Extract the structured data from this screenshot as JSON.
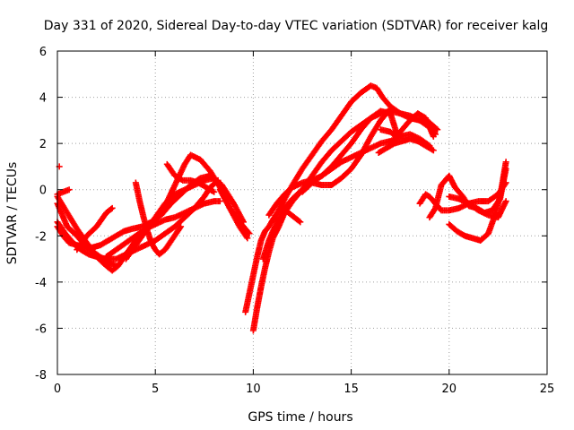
{
  "chart_data": {
    "type": "scatter",
    "title": "Day 331 of 2020, Sidereal Day-to-day VTEC variation (SDTVAR) for receiver kalg",
    "xlabel": "GPS time / hours",
    "ylabel": "SDTVAR / TECUs",
    "xlim": [
      0,
      25
    ],
    "ylim": [
      -8,
      6
    ],
    "xticks": [
      0,
      5,
      10,
      15,
      20,
      25
    ],
    "yticks": [
      -8,
      -6,
      -4,
      -2,
      0,
      2,
      4,
      6
    ],
    "grid": true,
    "marker": "+",
    "color": "#ff0000",
    "tracks": [
      {
        "x": [
          0.0,
          0.5,
          1.0,
          1.5,
          2.0,
          2.5,
          2.8,
          3.1,
          3.5,
          4.0,
          4.5,
          5.0,
          5.5,
          6.0,
          6.5,
          6.8,
          7.3,
          7.8,
          8.3,
          8.8,
          9.3,
          9.7
        ],
        "y": [
          -0.3,
          -1.0,
          -1.7,
          -2.3,
          -2.9,
          -3.3,
          -3.5,
          -3.3,
          -2.8,
          -2.2,
          -1.8,
          -1.3,
          -0.7,
          0.2,
          1.1,
          1.5,
          1.3,
          0.8,
          0.1,
          -0.8,
          -1.6,
          -2.1
        ]
      },
      {
        "x": [
          0.0,
          0.4,
          0.8,
          1.2,
          1.6,
          2.0,
          2.5,
          3.0,
          3.5,
          4.0,
          4.5,
          5.0,
          5.5,
          6.0,
          6.5,
          7.0,
          7.5,
          7.8,
          8.2
        ],
        "y": [
          -1.4,
          -1.9,
          -2.3,
          -2.6,
          -2.8,
          -2.9,
          -3.0,
          -3.0,
          -2.8,
          -2.6,
          -2.4,
          -2.2,
          -1.9,
          -1.6,
          -1.2,
          -0.8,
          -0.3,
          0.1,
          0.4
        ]
      },
      {
        "x": [
          0.0,
          0.3,
          0.6,
          1.0,
          1.4,
          1.8,
          2.2,
          2.6,
          3.0,
          3.4,
          3.8,
          4.3,
          4.8,
          5.3,
          5.8,
          6.3,
          6.8,
          7.3,
          7.8,
          8.4,
          9.0,
          9.5
        ],
        "y": [
          -1.6,
          -2.0,
          -2.3,
          -2.4,
          -2.5,
          -2.5,
          -2.4,
          -2.2,
          -2.0,
          -1.8,
          -1.7,
          -1.6,
          -1.4,
          -1.1,
          -0.6,
          -0.2,
          0.2,
          0.5,
          0.6,
          0.2,
          -0.6,
          -1.4
        ]
      },
      {
        "x": [
          0.0,
          0.3,
          0.6
        ],
        "y": [
          -0.2,
          -0.1,
          0.0
        ]
      },
      {
        "x": [
          1.0,
          1.5,
          2.0,
          2.5,
          2.8
        ],
        "y": [
          -2.6,
          -2.0,
          -1.6,
          -1.0,
          -0.8
        ]
      },
      {
        "x": [
          2.5,
          3.0,
          3.5,
          4.0,
          4.5,
          5.0,
          5.5,
          6.0,
          6.5,
          7.0,
          7.5,
          8.0,
          8.3
        ],
        "y": [
          -2.9,
          -2.6,
          -2.3,
          -2.0,
          -1.7,
          -1.5,
          -1.3,
          -1.2,
          -1.0,
          -0.8,
          -0.6,
          -0.5,
          -0.5
        ]
      },
      {
        "x": [
          3.5,
          4.0,
          4.5,
          5.0,
          5.5,
          6.0,
          6.5,
          7.0,
          7.5,
          8.0
        ],
        "y": [
          -3.0,
          -2.4,
          -1.8,
          -1.2,
          -0.6,
          -0.2,
          0.0,
          0.2,
          0.4,
          0.5
        ]
      },
      {
        "x": [
          4.0,
          4.2,
          4.4,
          4.6,
          4.8,
          5.0,
          5.2,
          5.5,
          5.9,
          6.3
        ],
        "y": [
          0.3,
          -0.5,
          -1.2,
          -1.8,
          -2.3,
          -2.6,
          -2.8,
          -2.6,
          -2.1,
          -1.6
        ]
      },
      {
        "x": [
          5.6,
          6.0,
          6.4,
          6.8,
          7.2,
          7.6,
          8.0
        ],
        "y": [
          1.1,
          0.6,
          0.4,
          0.4,
          0.3,
          0.1,
          -0.1
        ]
      },
      {
        "x": [
          8.3,
          8.8,
          9.3,
          9.8
        ],
        "y": [
          0.0,
          -0.8,
          -1.4,
          -1.9
        ]
      },
      {
        "x": [
          9.6,
          9.8,
          10.0,
          10.2,
          10.4,
          10.6,
          10.8,
          11.0,
          11.3,
          11.6,
          12.0,
          12.5,
          13.0,
          13.5,
          14.0,
          14.5,
          15.0,
          15.5,
          16.0,
          16.3,
          16.6,
          17.0,
          17.5,
          18.0,
          18.5,
          19.0,
          19.4
        ],
        "y": [
          -5.3,
          -4.5,
          -3.7,
          -2.9,
          -2.2,
          -1.8,
          -1.6,
          -1.3,
          -0.9,
          -0.4,
          0.2,
          0.9,
          1.5,
          2.1,
          2.6,
          3.2,
          3.8,
          4.2,
          4.5,
          4.4,
          4.0,
          3.6,
          3.3,
          3.1,
          3.0,
          2.9,
          2.6
        ]
      },
      {
        "x": [
          10.0,
          10.2,
          10.4,
          10.6,
          10.8,
          11.0,
          11.3,
          11.6,
          12.0,
          12.5,
          13.0,
          13.5,
          14.0,
          14.5,
          15.0,
          15.5,
          16.0,
          16.5,
          17.0,
          17.5,
          18.0,
          18.5,
          19.0,
          19.3
        ],
        "y": [
          -6.1,
          -5.1,
          -4.2,
          -3.4,
          -2.7,
          -2.1,
          -1.6,
          -1.0,
          -0.5,
          0.0,
          0.6,
          1.2,
          1.7,
          2.1,
          2.5,
          2.8,
          3.1,
          3.3,
          3.4,
          3.3,
          3.2,
          3.0,
          2.7,
          2.4
        ]
      },
      {
        "x": [
          10.5,
          10.8,
          11.0,
          11.3,
          11.6,
          12.0,
          12.5,
          13.0,
          13.5,
          14.0,
          14.5,
          15.0,
          15.5,
          16.0,
          16.5,
          17.0,
          17.5,
          18.0,
          18.5,
          19.0
        ],
        "y": [
          -3.0,
          -2.2,
          -1.8,
          -1.3,
          -0.8,
          -0.4,
          0.0,
          0.3,
          0.6,
          0.9,
          1.2,
          1.4,
          1.6,
          1.8,
          2.0,
          2.1,
          2.3,
          2.4,
          2.2,
          1.9
        ]
      },
      {
        "x": [
          10.8,
          11.2,
          11.6,
          12.0,
          12.5,
          13.0,
          13.5,
          14.0,
          14.5,
          15.0,
          15.5,
          16.0,
          16.5,
          17.0,
          17.3
        ],
        "y": [
          -1.1,
          -0.6,
          -0.2,
          0.1,
          0.3,
          0.4,
          0.6,
          1.0,
          1.5,
          2.0,
          2.6,
          3.1,
          3.4,
          3.3,
          2.5
        ]
      },
      {
        "x": [
          11.5,
          11.8,
          12.1,
          12.4
        ],
        "y": [
          -0.8,
          -1.0,
          -1.2,
          -1.4
        ]
      },
      {
        "x": [
          12.5,
          13.0,
          13.5,
          14.0,
          14.5,
          15.0,
          15.5,
          16.0,
          16.5,
          17.0
        ],
        "y": [
          -0.1,
          0.3,
          0.2,
          0.2,
          0.5,
          0.9,
          1.5,
          2.3,
          3.0,
          3.5
        ]
      },
      {
        "x": [
          16.5,
          17.0,
          17.3,
          17.6,
          18.0,
          18.4,
          18.8,
          19.2
        ],
        "y": [
          2.6,
          2.5,
          2.3,
          2.6,
          3.0,
          3.3,
          3.1,
          2.3
        ]
      },
      {
        "x": [
          16.4,
          16.8,
          17.2,
          17.6,
          18.0,
          18.4,
          18.8,
          19.2
        ],
        "y": [
          1.6,
          1.8,
          2.0,
          2.1,
          2.2,
          2.1,
          1.9,
          1.7
        ]
      },
      {
        "x": [
          18.5,
          18.8,
          19.0,
          19.3,
          19.6,
          20.0,
          20.5,
          21.0,
          21.5,
          22.0,
          22.5,
          22.9
        ],
        "y": [
          -0.6,
          -0.2,
          -0.3,
          -0.6,
          -0.9,
          -0.9,
          -0.8,
          -0.6,
          -0.5,
          -0.5,
          -0.2,
          0.3
        ]
      },
      {
        "x": [
          19.0,
          19.3,
          19.6,
          20.0,
          20.3,
          20.7,
          21.0,
          21.4,
          21.8,
          22.2,
          22.6,
          22.9
        ],
        "y": [
          -1.2,
          -0.8,
          0.2,
          0.6,
          0.1,
          -0.3,
          -0.7,
          -0.8,
          -1.0,
          -0.9,
          -0.4,
          0.9
        ]
      },
      {
        "x": [
          20.0,
          20.4,
          20.8,
          21.2,
          21.6,
          22.0,
          22.3,
          22.6,
          22.9
        ],
        "y": [
          -1.5,
          -1.8,
          -2.0,
          -2.1,
          -2.2,
          -1.9,
          -1.2,
          -0.3,
          1.2
        ]
      },
      {
        "x": [
          20.0,
          20.5,
          21.0,
          21.5,
          22.0,
          22.5,
          22.9
        ],
        "y": [
          -0.3,
          -0.4,
          -0.6,
          -0.9,
          -1.1,
          -1.2,
          -0.5
        ]
      },
      {
        "x": [
          0.0,
          0.5,
          1.0,
          1.5,
          2.0,
          2.5,
          3.0
        ],
        "y": [
          -0.6,
          -1.6,
          -2.0,
          -2.5,
          -2.8,
          -3.1,
          -3.3
        ]
      },
      {
        "x": [
          0.1
        ],
        "y": [
          1.0
        ]
      }
    ]
  }
}
